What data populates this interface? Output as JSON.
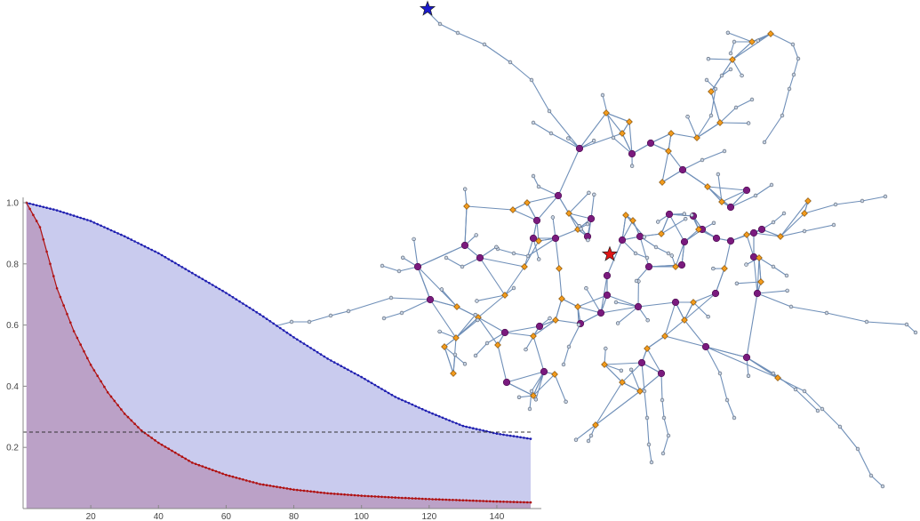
{
  "chart_data": [
    {
      "type": "area",
      "xlim": [
        0,
        150
      ],
      "ylim": [
        0,
        1.0
      ],
      "x_ticks": [
        "20",
        "40",
        "60",
        "80",
        "100",
        "120",
        "140"
      ],
      "y_ticks": [
        "0.2",
        "0.4",
        "0.6",
        "0.8",
        "1.0"
      ],
      "reference_line": {
        "y": 0.25,
        "style": "dashed"
      },
      "series": [
        {
          "color": "#1f1fb0",
          "fill": "#c9cbee",
          "x": [
            1,
            10,
            20,
            30,
            40,
            50,
            60,
            70,
            80,
            90,
            100,
            110,
            120,
            130,
            140,
            150
          ],
          "y": [
            1.0,
            0.975,
            0.94,
            0.89,
            0.835,
            0.77,
            0.705,
            0.635,
            0.56,
            0.49,
            0.43,
            0.365,
            0.315,
            0.27,
            0.245,
            0.228
          ]
        },
        {
          "color": "#b01010",
          "fill": "#b89ac0",
          "x": [
            1,
            5,
            10,
            15,
            20,
            25,
            30,
            35,
            40,
            50,
            60,
            70,
            80,
            90,
            100,
            110,
            120,
            130,
            140,
            150
          ],
          "y": [
            1.0,
            0.92,
            0.72,
            0.58,
            0.47,
            0.38,
            0.31,
            0.255,
            0.215,
            0.15,
            0.11,
            0.08,
            0.062,
            0.05,
            0.042,
            0.036,
            0.031,
            0.027,
            0.023,
            0.02
          ]
        }
      ]
    },
    {
      "type": "network",
      "edge_color": "#6f8fb8",
      "node_styles": {
        "hub": {
          "color": "#7a1a7e",
          "shape": "circle"
        },
        "relay": {
          "color": "#f29b1d",
          "shape": "diamond"
        },
        "leaf": {
          "color": "#c8d4e4",
          "shape": "small-circle"
        }
      },
      "markers": [
        {
          "name": "start",
          "color": "#1a1acc",
          "shape": "star"
        },
        {
          "name": "target",
          "color": "#e01515",
          "shape": "star"
        }
      ]
    }
  ]
}
